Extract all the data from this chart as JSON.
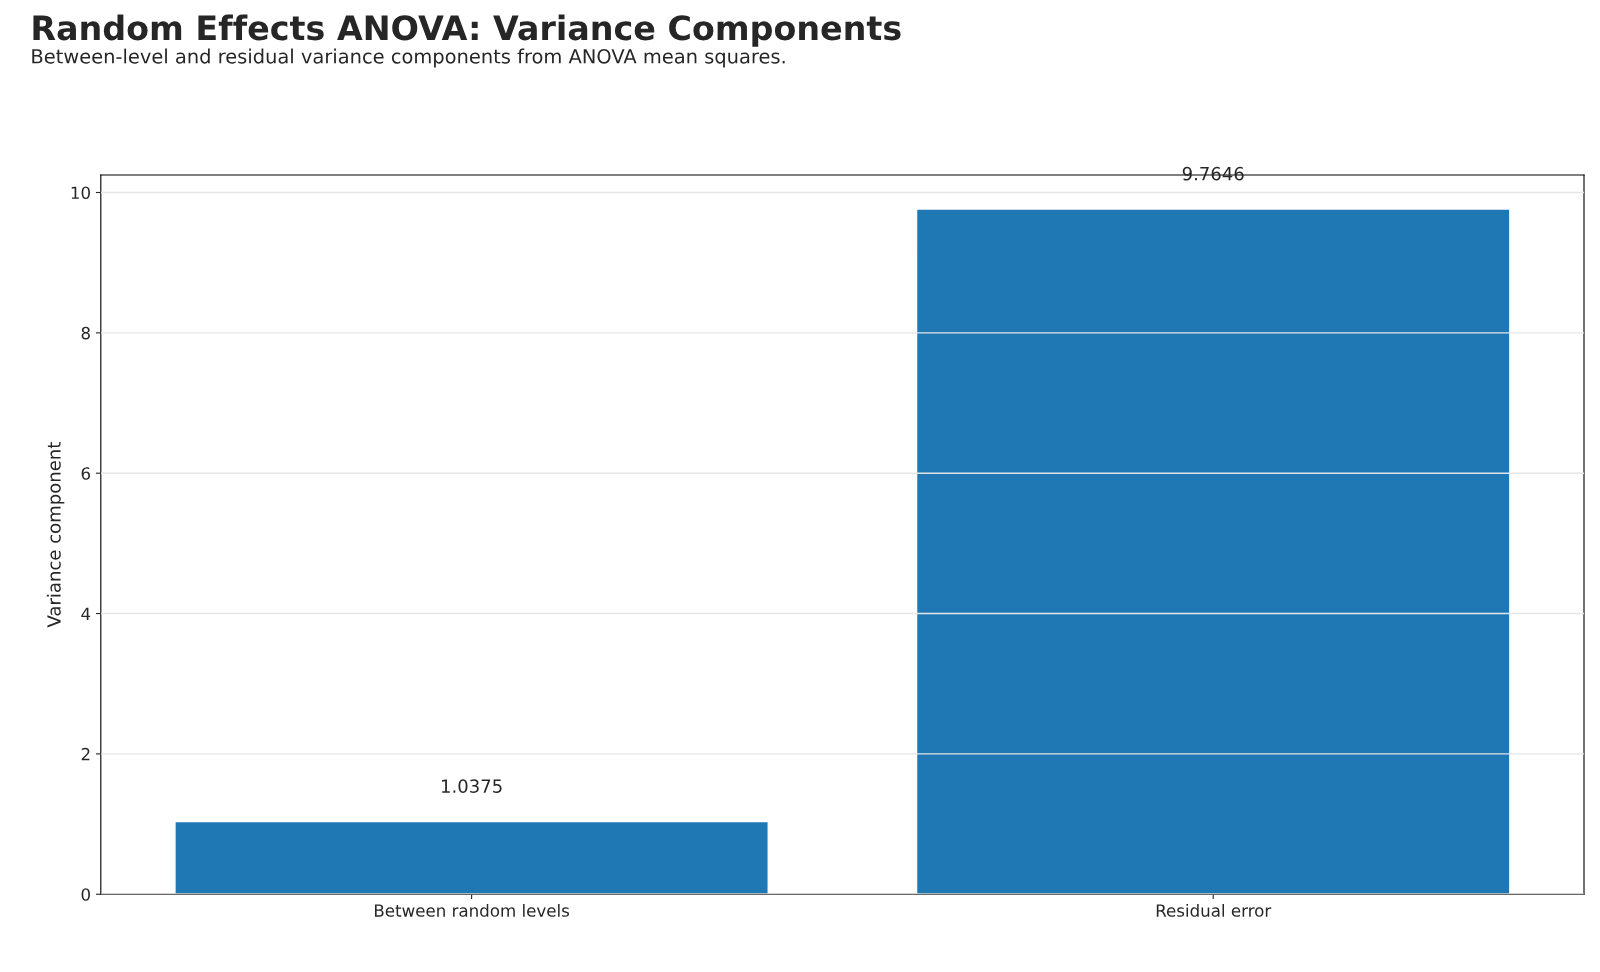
{
  "chart_data": {
    "type": "bar",
    "title": "Random Effects ANOVA: Variance Components",
    "subtitle": "Between-level and residual variance components from ANOVA mean squares.",
    "ylabel": "Variance component",
    "categories": [
      "Between random levels",
      "Residual error"
    ],
    "values": [
      1.0375,
      9.7646
    ],
    "color": "#1f77b4",
    "ylim": [
      0,
      10.25
    ],
    "yticks": [
      0,
      2,
      4,
      6,
      8,
      10
    ],
    "grid": "y",
    "data_labels": true
  }
}
